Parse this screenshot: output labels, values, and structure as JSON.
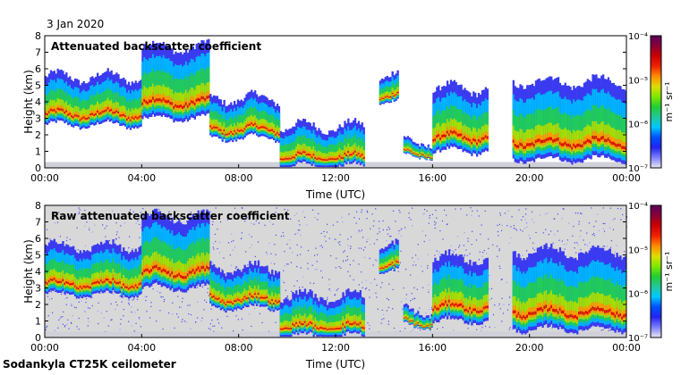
{
  "figure": {
    "date": "3 Jan 2020",
    "footer": "Sodankyla CT25K ceilometer"
  },
  "colorbar": {
    "unit_label": "m⁻¹ sr⁻¹",
    "ticks": [
      "10⁻⁷",
      "10⁻⁶",
      "10⁻⁵",
      "10⁻⁴"
    ],
    "tick_exponents": [
      -7,
      -6,
      -5,
      -4
    ],
    "colors": [
      "#e8e8f4",
      "#7f7fff",
      "#2323ee",
      "#0050ff",
      "#00c8ff",
      "#22c79a",
      "#22cc33",
      "#7fe800",
      "#dddd00",
      "#ff8c00",
      "#ee2200",
      "#cc0000",
      "#8a003a",
      "#5a005a"
    ]
  },
  "chart_data": [
    {
      "type": "heatmap",
      "title": "Attenuated backscatter coefficient",
      "xlabel": "Time (UTC)",
      "ylabel": "Height (km)",
      "xticks": [
        "00:00",
        "04:00",
        "08:00",
        "12:00",
        "16:00",
        "20:00",
        "00:00"
      ],
      "yticks": [
        "0",
        "1",
        "2",
        "3",
        "4",
        "5",
        "6",
        "7",
        "8"
      ],
      "xlim_hours": [
        0,
        24
      ],
      "ylim_km": [
        0,
        8
      ],
      "clim_log10": [
        -7,
        -4
      ],
      "approx_cloud_features": [
        {
          "t_start_h": 0.0,
          "t_end_h": 4.0,
          "base_km": 2.6,
          "top_km": 5.5
        },
        {
          "t_start_h": 4.0,
          "t_end_h": 6.8,
          "base_km": 3.0,
          "top_km": 7.3
        },
        {
          "t_start_h": 6.8,
          "t_end_h": 9.7,
          "base_km": 1.8,
          "top_km": 4.2
        },
        {
          "t_start_h": 9.7,
          "t_end_h": 13.2,
          "base_km": 0.1,
          "top_km": 2.5
        },
        {
          "t_start_h": 13.8,
          "t_end_h": 14.6,
          "base_km": 4.0,
          "top_km": 5.6
        },
        {
          "t_start_h": 14.8,
          "t_end_h": 16.0,
          "base_km": 0.7,
          "top_km": 1.6
        },
        {
          "t_start_h": 16.0,
          "t_end_h": 18.3,
          "base_km": 1.0,
          "top_km": 4.8
        },
        {
          "t_start_h": 19.3,
          "t_end_h": 24.0,
          "base_km": 0.5,
          "top_km": 5.2
        }
      ]
    },
    {
      "type": "heatmap",
      "title": "Raw attenuated backscatter coefficient",
      "xlabel": "Time (UTC)",
      "ylabel": "Height (km)",
      "xticks": [
        "00:00",
        "04:00",
        "08:00",
        "12:00",
        "16:00",
        "20:00",
        "00:00"
      ],
      "yticks": [
        "0",
        "1",
        "2",
        "3",
        "4",
        "5",
        "6",
        "7",
        "8"
      ],
      "xlim_hours": [
        0,
        24
      ],
      "ylim_km": [
        0,
        8
      ],
      "clim_log10": [
        -7,
        -4
      ],
      "approx_cloud_features": [
        {
          "t_start_h": 0.0,
          "t_end_h": 4.0,
          "base_km": 2.6,
          "top_km": 5.5
        },
        {
          "t_start_h": 4.0,
          "t_end_h": 6.8,
          "base_km": 3.0,
          "top_km": 7.3
        },
        {
          "t_start_h": 6.8,
          "t_end_h": 9.7,
          "base_km": 1.8,
          "top_km": 4.2
        },
        {
          "t_start_h": 9.7,
          "t_end_h": 13.2,
          "base_km": 0.1,
          "top_km": 2.5
        },
        {
          "t_start_h": 13.8,
          "t_end_h": 14.6,
          "base_km": 4.0,
          "top_km": 5.6
        },
        {
          "t_start_h": 14.8,
          "t_end_h": 16.0,
          "base_km": 0.7,
          "top_km": 1.6
        },
        {
          "t_start_h": 16.0,
          "t_end_h": 18.3,
          "base_km": 1.0,
          "top_km": 4.8
        },
        {
          "t_start_h": 19.3,
          "t_end_h": 24.0,
          "base_km": 0.5,
          "top_km": 5.2
        }
      ]
    }
  ]
}
